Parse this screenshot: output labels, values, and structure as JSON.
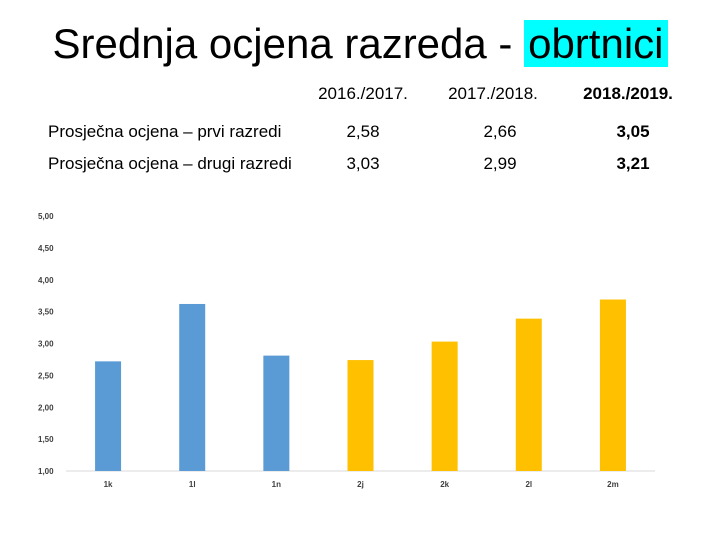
{
  "title": {
    "main": "Srednja ocjena razreda - ",
    "highlight": "obrtnici"
  },
  "table": {
    "headers": [
      "2016./2017.",
      "2017./2018.",
      "2018./2019."
    ],
    "rows": [
      {
        "label": "Prosječna ocjena – prvi razredi",
        "values": [
          "2,58",
          "2,66",
          "3,05"
        ]
      },
      {
        "label": "Prosječna ocjena – drugi razredi",
        "values": [
          "3,03",
          "2,99",
          "3,21"
        ]
      }
    ]
  },
  "chart_data": {
    "type": "bar",
    "categories": [
      "1k",
      "1l",
      "1n",
      "2j",
      "2k",
      "2l",
      "2m"
    ],
    "values": [
      2.72,
      3.62,
      2.81,
      2.74,
      3.03,
      3.39,
      3.69
    ],
    "bar_colors": [
      "#5b9bd5",
      "#5b9bd5",
      "#5b9bd5",
      "#ffc000",
      "#ffc000",
      "#ffc000",
      "#ffc000"
    ],
    "ylim": [
      1.0,
      5.0
    ],
    "yticks": [
      "1,00",
      "1,50",
      "2,00",
      "2,50",
      "3,00",
      "3,50",
      "4,00",
      "4,50",
      "5,00"
    ],
    "grid": false,
    "legend": "none"
  }
}
